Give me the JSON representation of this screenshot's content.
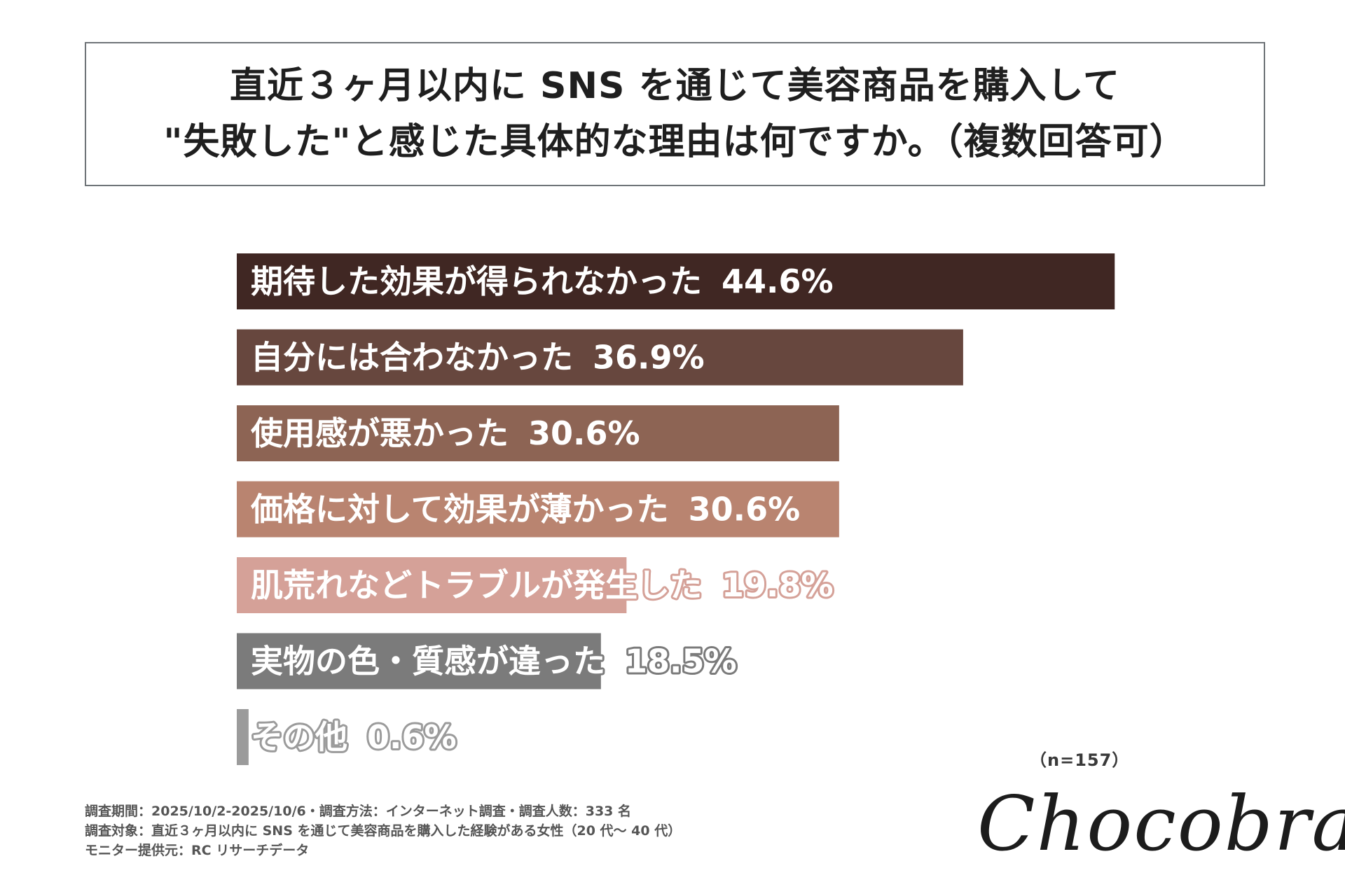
{
  "title": {
    "line1": "直近３ヶ月以内に SNS を通じて美容商品を購入して",
    "line2": "\"失敗した\"と感じた具体的な理由は何ですか。（複数回答可）"
  },
  "chart_data": {
    "type": "bar",
    "orientation": "horizontal",
    "categories": [
      "期待した効果が得られなかった",
      "自分には合わなかった",
      "使用感が悪かった",
      "価格に対して効果が薄かった",
      "肌荒れなどトラブルが発生した",
      "実物の色・質感が違った",
      "その他"
    ],
    "values": [
      44.6,
      36.9,
      30.6,
      30.6,
      19.8,
      18.5,
      0.6
    ],
    "value_labels": [
      "44.6%",
      "36.9%",
      "30.6%",
      "30.6%",
      "19.8%",
      "18.5%",
      "0.6%"
    ],
    "colors": [
      "#402723",
      "#67473e",
      "#8d6454",
      "#b98470",
      "#d5a198",
      "#7b7b7b",
      "#9b9b9b"
    ],
    "grid": false,
    "legend": "none"
  },
  "sample": "（n=157）",
  "notes": [
    "調査期間：2025/10/2-2025/10/6・調査方法：インターネット調査・調査人数：333 名",
    "調査対象：直近３ヶ月以内に SNS を通じて美容商品を購入した経験がある女性（20 代〜 40 代）",
    "モニター提供元：RC リサーチデータ"
  ],
  "logo": "Chocobra"
}
